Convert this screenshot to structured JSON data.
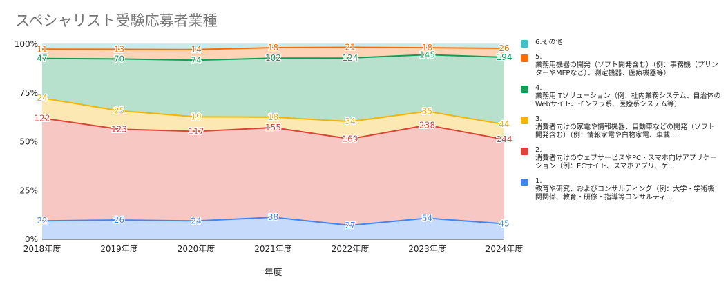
{
  "chart_data": {
    "type": "area",
    "stacked": "percent",
    "title": "スペシャリスト受験応募者業種",
    "xlabel": "年度",
    "ylabel": "",
    "categories": [
      "2018年度",
      "2019年度",
      "2020年度",
      "2021年度",
      "2022年度",
      "2023年度",
      "2024年度"
    ],
    "ylim": [
      0,
      100
    ],
    "yticks": [
      "0%",
      "25%",
      "50%",
      "75%",
      "100%"
    ],
    "grid": true,
    "legend": "right",
    "series": [
      {
        "name": "1.\n教育や研究、およびコンサルティング（例：大学・学術機関関係、教育・研修・指導等コンサルティ...",
        "color": "#4285f4",
        "fill": "#c6dafc",
        "values": [
          22,
          26,
          24,
          38,
          27,
          54,
          45
        ]
      },
      {
        "name": "2.\n消費者向けのウェブサービスやPC・スマホ向けアプリケーション（例：ECサイト、スマホアプリ、ゲ...",
        "color": "#db4437",
        "fill": "#f6c7c3",
        "values": [
          122,
          123,
          117,
          155,
          169,
          238,
          244
        ]
      },
      {
        "name": "3.\n消費者向けの家電や情報機器、自動車などの開発（ソフト開発含む）（例：情報家電や白物家電、車載...",
        "color": "#f4b400",
        "fill": "#fce8b2",
        "values": [
          24,
          25,
          19,
          18,
          34,
          35,
          44
        ]
      },
      {
        "name": "4.\n業務用ITソリューション（例：社内業務システム、自治体のWebサイト、インフラ系、医療系システム等）",
        "color": "#0f9d58",
        "fill": "#b7e1cd",
        "values": [
          47,
          70,
          74,
          102,
          124,
          145,
          194
        ]
      },
      {
        "name": "5.\n業務用機器の開発（ソフト開発含む）（例：事務機（プリンターやMFPなど）、測定機器、医療機器等）",
        "color": "#ff6d01",
        "fill": "#ffd3b6",
        "values": [
          11,
          13,
          14,
          18,
          21,
          18,
          26
        ]
      },
      {
        "name": "6.その他",
        "color": "#46bdc6",
        "fill": "#c7eaed",
        "values": [
          6,
          7,
          7,
          6,
          6,
          9,
          12
        ]
      }
    ]
  }
}
